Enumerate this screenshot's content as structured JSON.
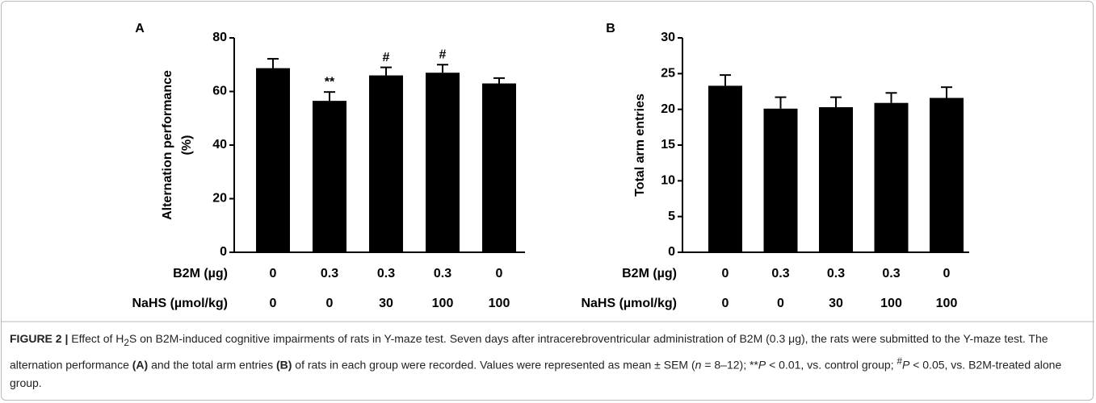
{
  "chart_data": [
    {
      "type": "bar",
      "panel": "A",
      "ylabel": [
        "Alternation performance",
        "(%)"
      ],
      "category_rows": [
        {
          "name": "B2M (µg)",
          "labels": [
            "0",
            "0.3",
            "0.3",
            "0.3",
            "0"
          ]
        },
        {
          "name": "NaHS (µmol/kg)",
          "labels": [
            "0",
            "0",
            "30",
            "100",
            "100"
          ]
        }
      ],
      "series": [
        {
          "color": "#000000",
          "values": [
            68.7,
            56.5,
            66,
            67,
            63
          ],
          "errors": [
            3.5,
            3.3,
            3,
            3,
            2
          ]
        }
      ],
      "annotations": [
        null,
        "**",
        "#",
        "#",
        null
      ],
      "ylim": [
        0,
        80
      ],
      "yticks": [
        0,
        20,
        40,
        60,
        80
      ]
    },
    {
      "type": "bar",
      "panel": "B",
      "ylabel": [
        "Total arm entries"
      ],
      "category_rows": [
        {
          "name": "B2M (µg)",
          "labels": [
            "0",
            "0.3",
            "0.3",
            "0.3",
            "0"
          ]
        },
        {
          "name": "NaHS (µmol/kg)",
          "labels": [
            "0",
            "0",
            "30",
            "100",
            "100"
          ]
        }
      ],
      "series": [
        {
          "color": "#000000",
          "values": [
            23.3,
            20.1,
            20.3,
            20.9,
            21.6
          ],
          "errors": [
            1.5,
            1.6,
            1.4,
            1.4,
            1.5
          ]
        }
      ],
      "annotations": [
        null,
        null,
        null,
        null,
        null
      ],
      "ylim": [
        0,
        30
      ],
      "yticks": [
        0,
        5,
        10,
        15,
        20,
        25,
        30
      ]
    }
  ],
  "caption": [
    "FIGURE 2 |",
    " Effect of H",
    "2",
    "S on B2M-induced cognitive impairments of rats in Y-maze test. Seven days after intracerebroventricular administration of B2M (0.3 μg), the rats were submitted to the Y-maze test. The alternation performance ",
    "(A)",
    " and the total arm entries ",
    "(B)",
    " of rats in each group were recorded. Values were represented as mean ± SEM (",
    "n",
    " = 8–12); **",
    "P",
    " < 0.01, vs. control group; ",
    "#",
    "P",
    " < 0.05, vs. B2M-treated alone group."
  ]
}
